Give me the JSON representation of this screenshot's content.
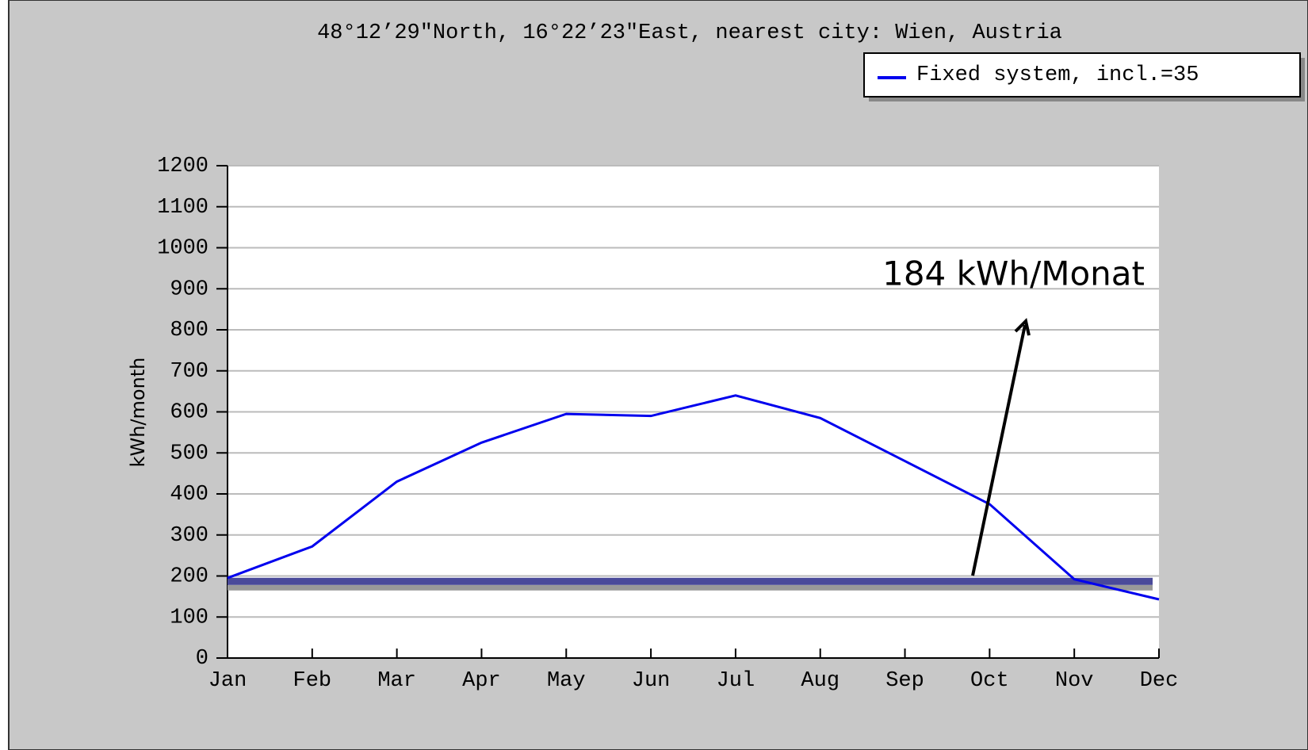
{
  "chart_data": {
    "type": "line",
    "title": "48°12’29\"North, 16°22’23\"East, nearest city: Wien, Austria",
    "ylabel": "kWh/month",
    "categories": [
      "Jan",
      "Feb",
      "Mar",
      "Apr",
      "May",
      "Jun",
      "Jul",
      "Aug",
      "Sep",
      "Oct",
      "Nov",
      "Dec"
    ],
    "series": [
      {
        "name": "Fixed system, incl.=35",
        "color": "#0000ee",
        "values": [
          195,
          272,
          430,
          525,
          595,
          590,
          640,
          585,
          480,
          375,
          192,
          143
        ]
      }
    ],
    "ylim": [
      0,
      1200
    ],
    "yticks": [
      0,
      100,
      200,
      300,
      400,
      500,
      600,
      700,
      800,
      900,
      1000,
      1100,
      1200
    ],
    "grid": true,
    "legend": "top-right",
    "reference_line": {
      "value": 184,
      "label": "184 kWh/Monat",
      "color": "#4a4a9a"
    }
  }
}
